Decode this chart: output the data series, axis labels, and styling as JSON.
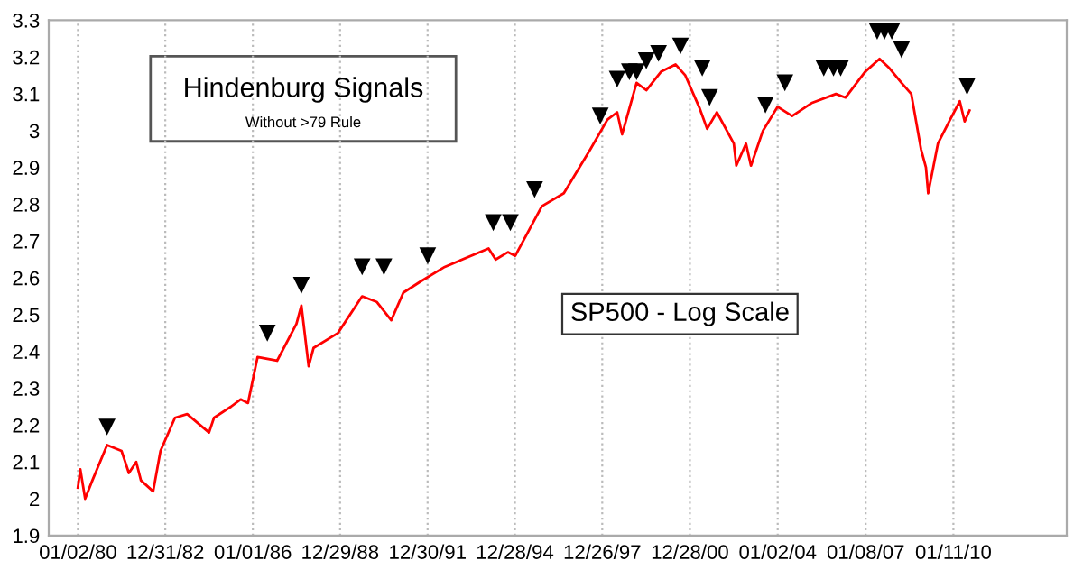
{
  "chart_data": {
    "type": "line",
    "title": "Hindenburg Signals",
    "subtitle": "Without >79 Rule",
    "annotations": [
      "SP500 - Log Scale"
    ],
    "xlim": [
      "1979-01-01",
      "2013-12-01"
    ],
    "xticks": [
      {
        "value": "1980-01-02",
        "label": "01/02/80"
      },
      {
        "value": "1982-12-31",
        "label": "12/31/82"
      },
      {
        "value": "1986-01-01",
        "label": "01/01/86"
      },
      {
        "value": "1988-12-29",
        "label": "12/29/88"
      },
      {
        "value": "1991-12-30",
        "label": "12/30/91"
      },
      {
        "value": "1994-12-28",
        "label": "12/28/94"
      },
      {
        "value": "1997-12-26",
        "label": "12/26/97"
      },
      {
        "value": "2000-12-28",
        "label": "12/28/00"
      },
      {
        "value": "2004-01-02",
        "label": "01/02/04"
      },
      {
        "value": "2007-01-08",
        "label": "01/08/07"
      },
      {
        "value": "2010-01-11",
        "label": "01/11/10"
      }
    ],
    "ylim": [
      1.9,
      3.3
    ],
    "yticks": [
      1.9,
      2,
      2.1,
      2.2,
      2.3,
      2.4,
      2.5,
      2.6,
      2.7,
      2.8,
      2.9,
      3,
      3.1,
      3.2,
      3.3
    ],
    "grid": "x",
    "legend": false,
    "series": [
      {
        "color": "#ff0000",
        "x": [
          "1980-01",
          "1980-02",
          "1980-04",
          "1980-07",
          "1981-01",
          "1981-07",
          "1981-10",
          "1982-01",
          "1982-03",
          "1982-08",
          "1982-11",
          "1983-05",
          "1983-10",
          "1984-07",
          "1984-09",
          "1985-04",
          "1985-08",
          "1985-11",
          "1986-03",
          "1986-11",
          "1987-07",
          "1987-09",
          "1987-12",
          "1988-02",
          "1988-12",
          "1989-10",
          "1990-04",
          "1990-10",
          "1991-03",
          "1991-10",
          "1992-08",
          "1994-02",
          "1994-05",
          "1994-10",
          "1995-01",
          "1995-12",
          "1996-09",
          "1997-08",
          "1998-03",
          "1998-07",
          "1998-09",
          "1999-03",
          "1999-07",
          "2000-01",
          "2000-07",
          "2000-11",
          "2001-05",
          "2001-08",
          "2001-12",
          "2002-07",
          "2002-08",
          "2002-12",
          "2003-02",
          "2003-07",
          "2004-01",
          "2004-07",
          "2005-03",
          "2006-01",
          "2006-05",
          "2007-01",
          "2007-07",
          "2007-11",
          "2008-04",
          "2008-08",
          "2008-12",
          "2009-02",
          "2009-03",
          "2009-07",
          "2009-12",
          "2010-04",
          "2010-06",
          "2010-08"
        ],
        "values": [
          2.03,
          2.08,
          2.0,
          2.05,
          2.146,
          2.13,
          2.07,
          2.1,
          2.05,
          2.02,
          2.13,
          2.22,
          2.23,
          2.18,
          2.22,
          2.25,
          2.27,
          2.26,
          2.385,
          2.375,
          2.475,
          2.525,
          2.36,
          2.41,
          2.45,
          2.55,
          2.535,
          2.485,
          2.56,
          2.59,
          2.63,
          2.68,
          2.65,
          2.67,
          2.66,
          2.795,
          2.83,
          2.95,
          3.03,
          3.05,
          2.99,
          3.13,
          3.11,
          3.16,
          3.18,
          3.15,
          3.06,
          3.005,
          3.05,
          2.965,
          2.905,
          2.965,
          2.905,
          3.0,
          3.065,
          3.04,
          3.075,
          3.1,
          3.09,
          3.16,
          3.195,
          3.17,
          3.13,
          3.1,
          2.95,
          2.9,
          2.83,
          2.965,
          3.03,
          3.08,
          3.025,
          3.055
        ]
      },
      {
        "type": "scatter",
        "color": "#000000",
        "marker": "triangle",
        "x": [
          "1981-01",
          "1986-07",
          "1987-09",
          "1989-10",
          "1990-07",
          "1992-01",
          "1994-04",
          "1994-11",
          "1995-09",
          "1997-12",
          "1998-07",
          "1998-12",
          "1999-03",
          "1999-07",
          "1999-12",
          "2000-09",
          "2001-06",
          "2001-09",
          "2003-08",
          "2004-04",
          "2005-08",
          "2005-12",
          "2006-03",
          "2007-06",
          "2007-09",
          "2007-12",
          "2008-04",
          "2010-07"
        ],
        "values": [
          2.195,
          2.45,
          2.58,
          2.63,
          2.63,
          2.66,
          2.75,
          2.75,
          2.84,
          3.04,
          3.14,
          3.16,
          3.16,
          3.19,
          3.21,
          3.23,
          3.17,
          3.09,
          3.07,
          3.13,
          3.17,
          3.17,
          3.17,
          3.27,
          3.27,
          3.27,
          3.22,
          3.12
        ]
      }
    ]
  }
}
